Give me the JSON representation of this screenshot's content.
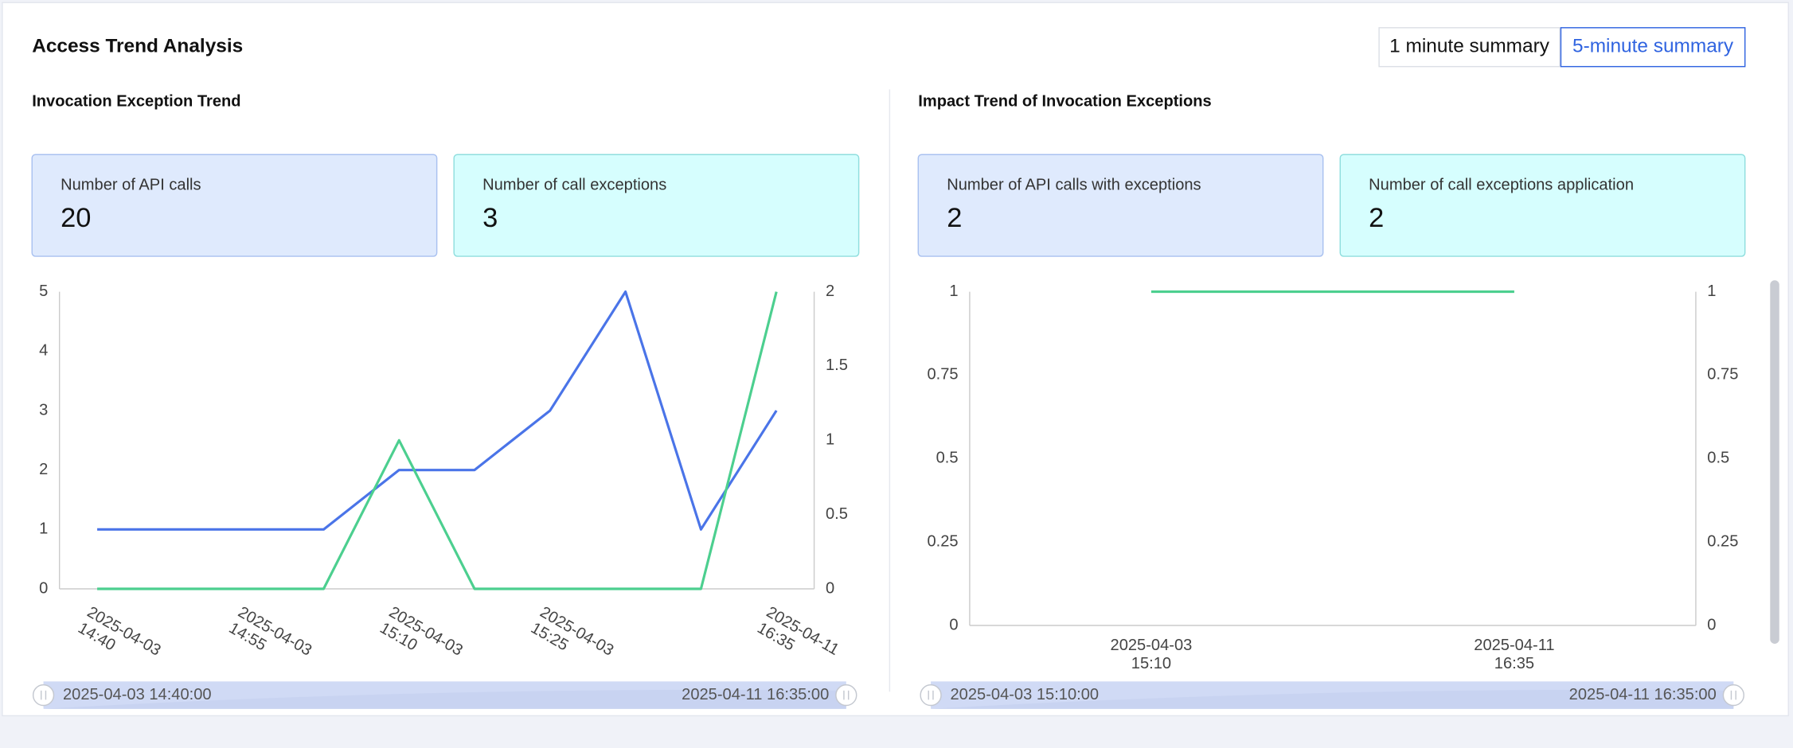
{
  "header": {
    "title": "Access Trend Analysis",
    "buttons": [
      "1 minute summary",
      "5-minute summary"
    ]
  },
  "panels": [
    {
      "title": "Invocation Exception Trend",
      "stats": [
        {
          "label": "Number of API calls",
          "value": 20
        },
        {
          "label": "Number of call exceptions",
          "value": 3
        }
      ],
      "zoom": {
        "start": "2025-04-03 14:40:00",
        "end": "2025-04-11 16:35:00"
      }
    },
    {
      "title": "Impact Trend of Invocation Exceptions",
      "stats": [
        {
          "label": "Number of API calls with exceptions",
          "value": 2
        },
        {
          "label": "Number of call exceptions application",
          "value": 2
        }
      ],
      "zoom": {
        "start": "2025-04-03 15:10:00",
        "end": "2025-04-11 16:35:00"
      }
    }
  ],
  "chart_data": [
    {
      "type": "line",
      "categories": [
        "2025-04-03 14:40",
        null,
        "2025-04-03 14:55",
        null,
        "2025-04-03 15:10",
        null,
        "2025-04-03 15:25",
        null,
        null,
        "2025-04-11 16:35"
      ],
      "series": [
        {
          "color": "#4a74e8",
          "values": [
            1,
            1,
            1,
            1,
            2,
            2,
            3,
            5,
            1,
            3
          ]
        },
        {
          "color": "#4ccf8f",
          "axis": "y2",
          "values": [
            0,
            0,
            0,
            0,
            1,
            0,
            0,
            0,
            0,
            2
          ]
        }
      ],
      "ylim": [
        0,
        5
      ],
      "yticks": [
        0,
        1,
        2,
        3,
        4,
        5
      ],
      "y2lim": [
        0,
        2
      ],
      "y2ticks": [
        0,
        0.5,
        1,
        1.5,
        2
      ],
      "rotated_labels": true
    },
    {
      "type": "line",
      "categories": [
        "2025-04-03 15:10",
        "2025-04-11 16:35"
      ],
      "series": [
        {
          "color": "#4ccf8f",
          "values": [
            1,
            1
          ]
        }
      ],
      "ylim": [
        0,
        1
      ],
      "yticks": [
        0,
        0.25,
        0.5,
        0.75,
        1
      ],
      "y2lim": [
        0,
        1
      ],
      "y2ticks": [
        0,
        0.25,
        0.5,
        0.75,
        1
      ],
      "rotated_labels": false
    }
  ]
}
